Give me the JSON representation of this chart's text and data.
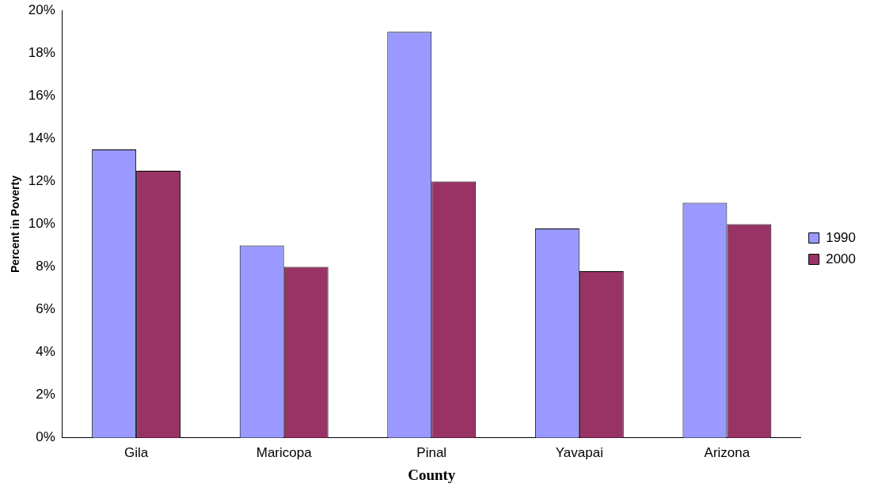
{
  "chart_data": {
    "type": "bar",
    "xlabel": "County",
    "ylabel": "Percent in Poverty",
    "categories": [
      "Gila",
      "Maricopa",
      "Pinal",
      "Yavapai",
      "Arizona"
    ],
    "series": [
      {
        "name": "1990",
        "color": "#9999ff",
        "values": [
          13.5,
          9.0,
          19.0,
          9.8,
          11.0
        ]
      },
      {
        "name": "2000",
        "color": "#993366",
        "values": [
          12.5,
          8.0,
          12.0,
          7.8,
          10.0
        ]
      }
    ],
    "ylim": [
      0,
      20
    ],
    "yticks": [
      {
        "value": 0,
        "label": "0%"
      },
      {
        "value": 2,
        "label": "2%"
      },
      {
        "value": 4,
        "label": "4%"
      },
      {
        "value": 6,
        "label": "6%"
      },
      {
        "value": 8,
        "label": "8%"
      },
      {
        "value": 10,
        "label": "10%"
      },
      {
        "value": 12,
        "label": "12%"
      },
      {
        "value": 14,
        "label": "14%"
      },
      {
        "value": 16,
        "label": "16%"
      },
      {
        "value": 18,
        "label": "18%"
      },
      {
        "value": 20,
        "label": "20%"
      }
    ],
    "grid": false,
    "legend": "right"
  }
}
